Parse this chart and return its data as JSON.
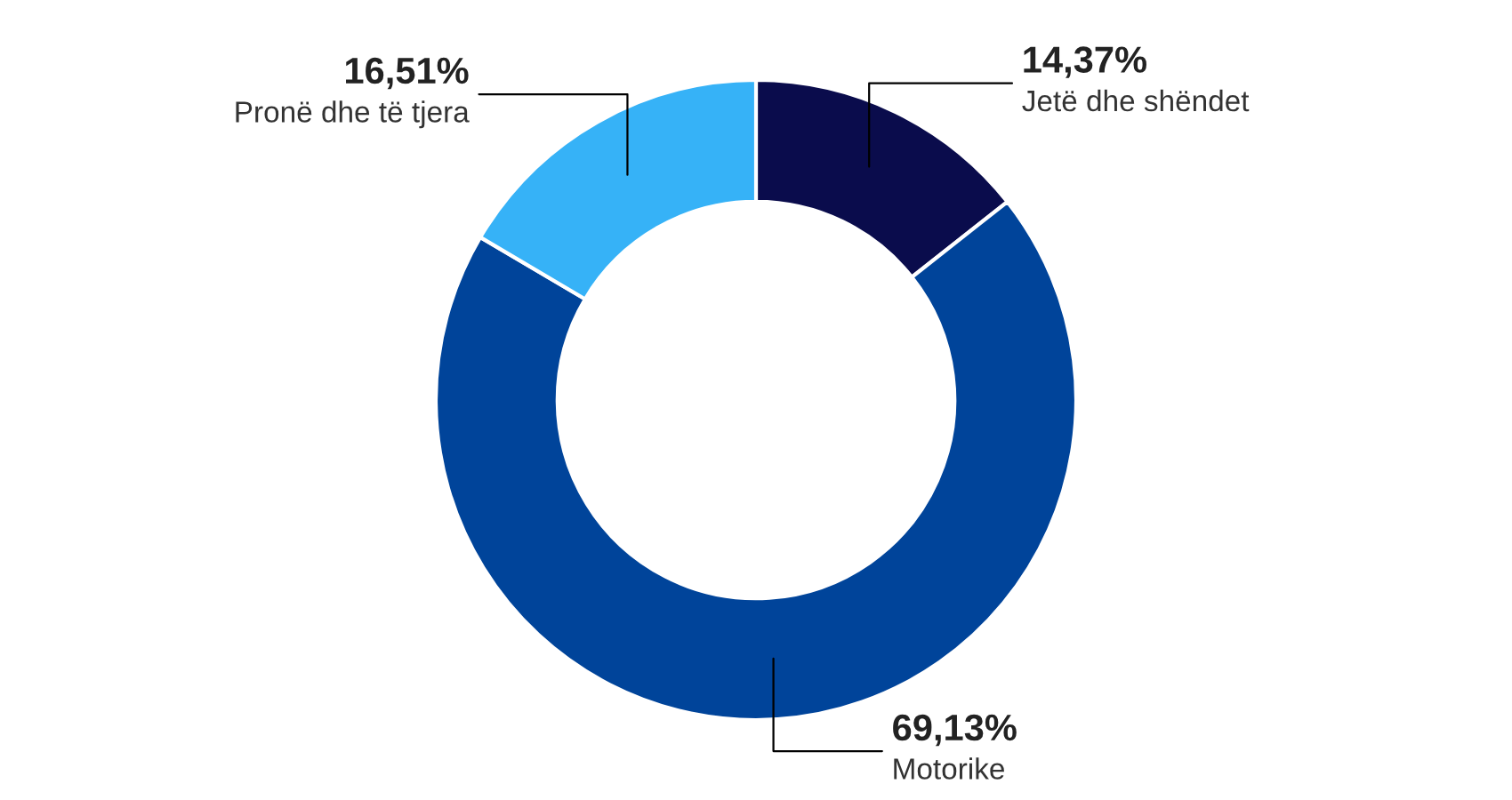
{
  "chart_data": {
    "type": "donut",
    "categories": [
      "Jetë dhe shëndet",
      "Motorike",
      "Pronë dhe të tjera"
    ],
    "values": [
      14.37,
      69.13,
      16.51
    ],
    "value_labels": [
      "14,37%",
      "69,13%",
      "16,51%"
    ],
    "colors": [
      "#0a0c4c",
      "#00449a",
      "#36b2f7"
    ],
    "legend": false
  }
}
